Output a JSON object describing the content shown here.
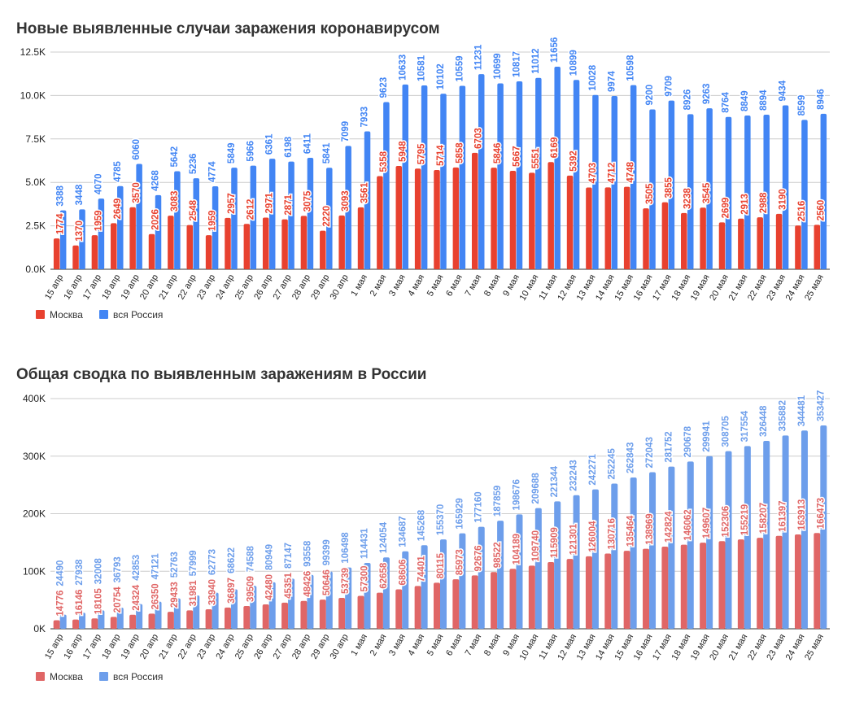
{
  "chart_data": [
    {
      "type": "bar",
      "title": "Новые выявленные случаи заражения коронавирусом",
      "categories": [
        "15 апр",
        "16 апр",
        "17 апр",
        "18 апр",
        "19 апр",
        "20 апр",
        "21 апр",
        "22 апр",
        "23 апр",
        "24 апр",
        "25 апр",
        "26 апр",
        "27 апр",
        "28 апр",
        "29 апр",
        "30 апр",
        "1 мая",
        "2 мая",
        "3 мая",
        "4 мая",
        "5 мая",
        "6 мая",
        "7 мая",
        "8 мая",
        "9 мая",
        "10 мая",
        "11 мая",
        "12 мая",
        "13 мая",
        "14 мая",
        "15 мая",
        "16 мая",
        "17 мая",
        "18 мая",
        "19 мая",
        "20 мая",
        "21 мая",
        "22 мая",
        "23 мая",
        "24 мая",
        "25 мая"
      ],
      "ylim": [
        0,
        12500
      ],
      "yticks": [
        0,
        2500,
        5000,
        7500,
        10000,
        12500
      ],
      "yticklabels": [
        "0.0K",
        "2.5K",
        "5.0K",
        "7.5K",
        "10.0K",
        "12.5K"
      ],
      "grid": true,
      "legend": "bottom-left",
      "series": [
        {
          "name": "Москва",
          "color": "#e8412f",
          "values": [
            1774,
            1370,
            1959,
            2649,
            3570,
            2026,
            3083,
            2548,
            1959,
            2957,
            2612,
            2971,
            2871,
            3075,
            2220,
            3093,
            3561,
            5358,
            5948,
            5795,
            5714,
            5858,
            6703,
            5846,
            5667,
            5551,
            6169,
            5392,
            4703,
            4712,
            4748,
            3505,
            3855,
            3238,
            3545,
            2699,
            2913,
            2988,
            3190,
            2516,
            2560
          ]
        },
        {
          "name": "вся Россия",
          "color": "#4285f4",
          "values": [
            3388,
            3448,
            4070,
            4785,
            6060,
            4268,
            5642,
            5236,
            4774,
            5849,
            5966,
            6361,
            6198,
            6411,
            5841,
            7099,
            7933,
            9623,
            10633,
            10581,
            10102,
            10559,
            11231,
            10699,
            10817,
            11012,
            11656,
            10899,
            10028,
            9974,
            10598,
            9200,
            9709,
            8926,
            9263,
            8764,
            8849,
            8894,
            9434,
            8599,
            8946
          ]
        }
      ]
    },
    {
      "type": "bar",
      "title": "Общая сводка по выявленным заражениям в России",
      "categories": [
        "15 апр",
        "16 апр",
        "17 апр",
        "18 апр",
        "19 апр",
        "20 апр",
        "21 апр",
        "22 апр",
        "23 апр",
        "24 апр",
        "25 апр",
        "26 апр",
        "27 апр",
        "28 апр",
        "29 апр",
        "30 апр",
        "1 мая",
        "2 мая",
        "3 мая",
        "4 мая",
        "5 мая",
        "6 мая",
        "7 мая",
        "8 мая",
        "9 мая",
        "10 мая",
        "11 мая",
        "12 мая",
        "13 мая",
        "14 мая",
        "15 мая",
        "16 мая",
        "17 мая",
        "18 мая",
        "19 мая",
        "20 мая",
        "21 мая",
        "22 мая",
        "23 мая",
        "24 мая",
        "25 мая"
      ],
      "ylim": [
        0,
        400000
      ],
      "yticks": [
        0,
        100000,
        200000,
        300000,
        400000
      ],
      "yticklabels": [
        "0K",
        "100K",
        "200K",
        "300K",
        "400K"
      ],
      "grid": true,
      "legend": "bottom-left",
      "series": [
        {
          "name": "Москва",
          "color": "#e06666",
          "values": [
            14776,
            16146,
            18105,
            20754,
            24324,
            26350,
            29433,
            31981,
            33940,
            36897,
            39509,
            42480,
            45351,
            48426,
            50646,
            53739,
            57300,
            62658,
            68606,
            74401,
            80115,
            85973,
            92676,
            98522,
            104189,
            109740,
            115909,
            121301,
            126004,
            130716,
            135464,
            138969,
            142824,
            146062,
            149607,
            152306,
            155219,
            158207,
            161397,
            163913,
            166473
          ]
        },
        {
          "name": "вся Россия",
          "color": "#6d9eeb",
          "values": [
            24490,
            27938,
            32008,
            36793,
            42853,
            47121,
            52763,
            57999,
            62773,
            68622,
            74588,
            80949,
            87147,
            93558,
            99399,
            106498,
            114431,
            124054,
            134687,
            145268,
            155370,
            165929,
            177160,
            187859,
            198676,
            209688,
            221344,
            232243,
            242271,
            252245,
            262843,
            272043,
            281752,
            290678,
            299941,
            308705,
            317554,
            326448,
            335882,
            344481,
            353427
          ]
        }
      ]
    }
  ]
}
